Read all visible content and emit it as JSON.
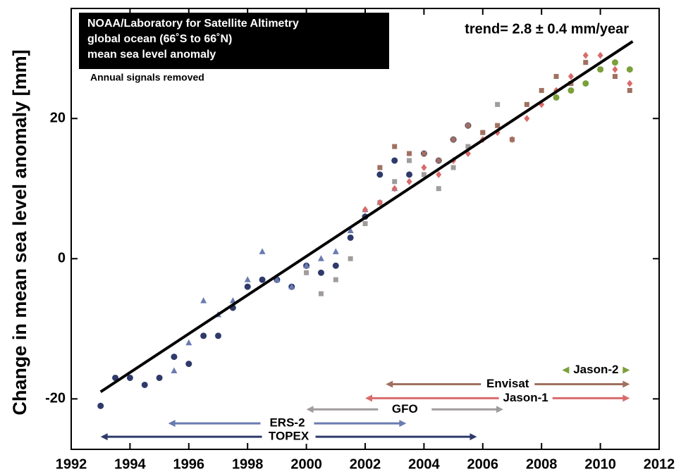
{
  "chart_data": {
    "type": "scatter",
    "title_lines": [
      "NOAA/Laboratory for Satellite Altimetry",
      "global ocean (66˚S to 66˚N)",
      "mean sea level anomaly"
    ],
    "subtitle": "Annual signals removed",
    "annotation": "trend= 2.8 ± 0.4 mm/year",
    "y_label": "Change in mean sea level anomaly [mm]",
    "xlim": [
      1992,
      2012
    ],
    "ylim": [
      -27.2,
      35.7
    ],
    "xticks": [
      1992,
      1994,
      1996,
      1998,
      2000,
      2002,
      2004,
      2006,
      2008,
      2010,
      2012
    ],
    "yticks": [
      -20,
      0,
      20
    ],
    "trend_line": {
      "x": [
        1993,
        2011.1
      ],
      "y": [
        -19,
        31
      ],
      "color": "#000000"
    },
    "series": [
      {
        "name": "TOPEX",
        "color": "#2f3a6b",
        "marker": "circle",
        "span": [
          1993,
          2005.8
        ],
        "span_y": -25.4,
        "x": [
          1993.0,
          1993.5,
          1994.0,
          1994.5,
          1995.0,
          1995.5,
          1996.0,
          1996.5,
          1997.0,
          1997.5,
          1998.0,
          1998.5,
          1999.0,
          1999.5,
          2000.0,
          2000.5,
          2001.0,
          2001.5,
          2002.0,
          2002.5,
          2003.0,
          2003.5,
          2004.0,
          2004.5,
          2005.0,
          2005.5
        ],
        "values": [
          -21,
          -17,
          -17,
          -18,
          -17,
          -14,
          -15,
          -11,
          -11,
          -7,
          -4,
          -3,
          -3,
          -4,
          -1,
          -2,
          -1,
          3,
          6,
          12,
          14,
          12,
          15,
          14,
          17,
          19
        ]
      },
      {
        "name": "ERS-2",
        "color": "#6a7bb0",
        "marker": "triangle",
        "span": [
          1995.3,
          2003.4
        ],
        "span_y": -23.5,
        "x": [
          1995.5,
          1996.0,
          1996.5,
          1997.0,
          1997.5,
          1998.0,
          1998.5,
          1999.0,
          1999.5,
          2000.0,
          2000.5,
          2001.0,
          2001.5,
          2002.0,
          2002.5,
          2003.0
        ],
        "values": [
          -16,
          -12,
          -6,
          -8,
          -6,
          -3,
          1,
          -3,
          -4,
          -1,
          0,
          1,
          4,
          7,
          8,
          10
        ]
      },
      {
        "name": "GFO",
        "color": "#a09c9c",
        "marker": "square",
        "span": [
          2000,
          2006.7
        ],
        "span_y": -21.5,
        "x": [
          2000.0,
          2000.5,
          2001.0,
          2001.5,
          2002.0,
          2002.5,
          2003.0,
          2003.5,
          2004.0,
          2004.5,
          2005.0,
          2005.5,
          2006.0,
          2006.5
        ],
        "values": [
          -2,
          -5,
          -3,
          0,
          5,
          8,
          11,
          14,
          12,
          10,
          13,
          16,
          18,
          22
        ]
      },
      {
        "name": "Jason-1",
        "color": "#d96b6b",
        "marker": "diamond",
        "span": [
          2002,
          2011
        ],
        "span_y": -19.9,
        "x": [
          2002.0,
          2002.5,
          2003.0,
          2003.5,
          2004.0,
          2004.5,
          2005.0,
          2005.5,
          2006.0,
          2006.5,
          2007.0,
          2007.5,
          2008.0,
          2008.5,
          2009.0,
          2009.5,
          2010.0,
          2010.5,
          2011.0
        ],
        "values": [
          7,
          8,
          10,
          11,
          13,
          12,
          14,
          15,
          17,
          18,
          17,
          20,
          22,
          24,
          26,
          29,
          29,
          27,
          25
        ]
      },
      {
        "name": "Envisat",
        "color": "#a07060",
        "marker": "square",
        "span": [
          2002.7,
          2011
        ],
        "span_y": -17.9,
        "x": [
          2002.5,
          2003.0,
          2003.5,
          2004.0,
          2004.5,
          2005.0,
          2005.5,
          2006.0,
          2006.5,
          2007.0,
          2007.5,
          2008.0,
          2008.5,
          2009.0,
          2009.5,
          2010.0,
          2010.5,
          2011.0
        ],
        "values": [
          13,
          16,
          15,
          15,
          14,
          17,
          19,
          18,
          19,
          17,
          22,
          24,
          26,
          25,
          28,
          27,
          26,
          24
        ]
      },
      {
        "name": "Jason-2",
        "color": "#7aa03a",
        "marker": "circle",
        "span": [
          2008.7,
          2011
        ],
        "span_y": -15.9,
        "x": [
          2008.5,
          2009.0,
          2009.5,
          2010.0,
          2010.5,
          2011.0
        ],
        "values": [
          23,
          24,
          25,
          27,
          28,
          27
        ]
      }
    ]
  }
}
